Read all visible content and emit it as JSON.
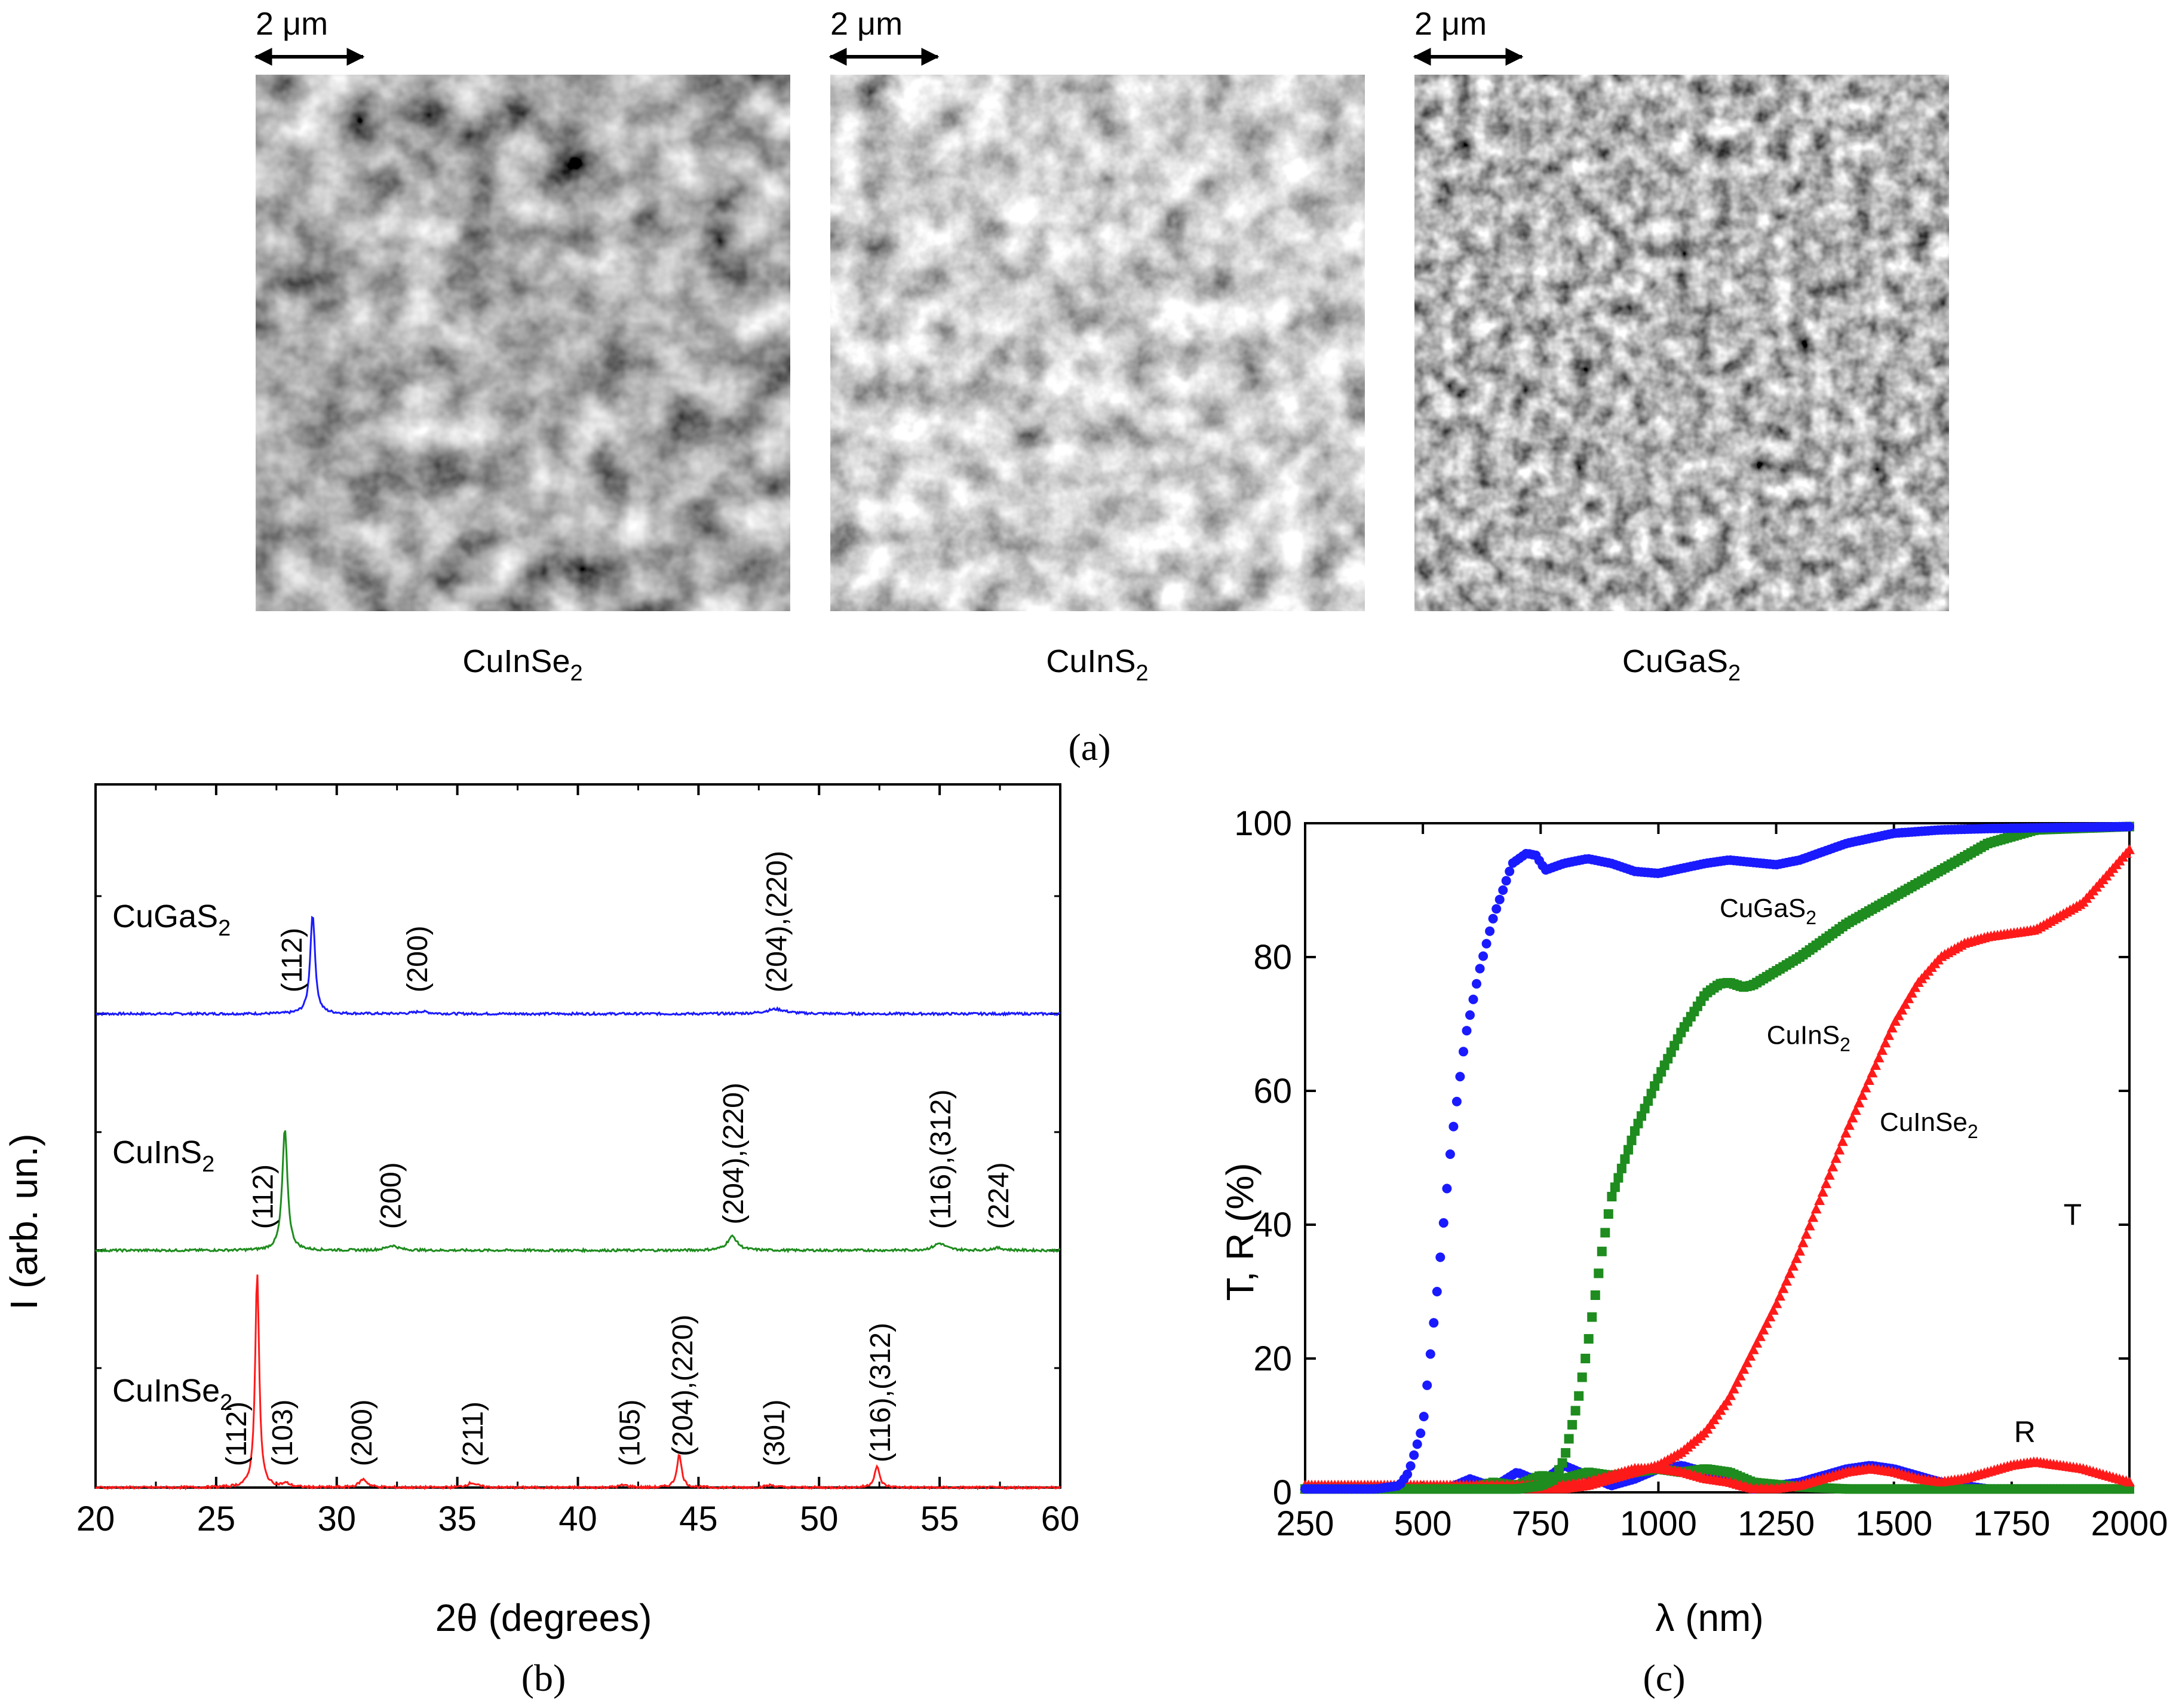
{
  "panel_a": {
    "panel_label": "(a)",
    "scale_bar_label": "2 μm",
    "images": [
      {
        "label": "CuInSe",
        "subscript": "2",
        "icon": "afm-image-grains-cuinse2"
      },
      {
        "label": "CuInS",
        "subscript": "2",
        "icon": "afm-image-grains-cuins2"
      },
      {
        "label": "CuGaS",
        "subscript": "2",
        "icon": "afm-image-grains-cugas2"
      }
    ]
  },
  "chart_data": [
    {
      "type": "line",
      "panel_label": "(b)",
      "xlabel": "2θ (degrees)",
      "ylabel": "I (arb. un.)",
      "xlim": [
        20,
        60
      ],
      "xticks": [
        20,
        25,
        30,
        35,
        40,
        45,
        50,
        55,
        60
      ],
      "y_ticks_shown": false,
      "series": [
        {
          "name": "CuGaS",
          "name_sub": "2",
          "color": "#1a1aff",
          "offset": 2,
          "baseline_noise": 0.005,
          "peaks": [
            {
              "x": 29.0,
              "height": 0.43,
              "width": 0.12
            },
            {
              "x": 33.5,
              "height": 0.01,
              "width": 0.35
            },
            {
              "x": 48.2,
              "height": 0.02,
              "width": 0.5
            }
          ],
          "annotations": [
            {
              "x": 28.1,
              "text": "(112)"
            },
            {
              "x": 33.3,
              "text": "(200)"
            },
            {
              "x": 48.2,
              "text": "(204),(220)"
            }
          ]
        },
        {
          "name": "CuInS",
          "name_sub": "2",
          "color": "#1e8c1e",
          "offset": 1,
          "baseline_noise": 0.005,
          "peaks": [
            {
              "x": 27.85,
              "height": 0.52,
              "width": 0.13
            },
            {
              "x": 32.3,
              "height": 0.02,
              "width": 0.3
            },
            {
              "x": 46.4,
              "height": 0.06,
              "width": 0.25
            },
            {
              "x": 55.0,
              "height": 0.03,
              "width": 0.3
            },
            {
              "x": 57.4,
              "height": 0.01,
              "width": 0.3
            }
          ],
          "annotations": [
            {
              "x": 26.9,
              "text": "(112)"
            },
            {
              "x": 32.2,
              "text": "(200)"
            },
            {
              "x": 46.4,
              "text": "(204),(220)"
            },
            {
              "x": 55.0,
              "text": "(116),(312)"
            },
            {
              "x": 57.4,
              "text": "(224)"
            }
          ]
        },
        {
          "name": "CuInSe",
          "name_sub": "2",
          "color": "#ff1a1a",
          "offset": 0,
          "baseline_noise": 0.005,
          "peaks": [
            {
              "x": 26.7,
              "height": 0.92,
              "width": 0.1
            },
            {
              "x": 27.9,
              "height": 0.015,
              "width": 0.2
            },
            {
              "x": 31.1,
              "height": 0.035,
              "width": 0.2
            },
            {
              "x": 35.6,
              "height": 0.02,
              "width": 0.25
            },
            {
              "x": 41.9,
              "height": 0.01,
              "width": 0.25
            },
            {
              "x": 44.2,
              "height": 0.14,
              "width": 0.12
            },
            {
              "x": 48.0,
              "height": 0.01,
              "width": 0.25
            },
            {
              "x": 52.4,
              "height": 0.09,
              "width": 0.13
            }
          ],
          "annotations": [
            {
              "x": 25.8,
              "text": "(112)"
            },
            {
              "x": 27.7,
              "text": "(103)"
            },
            {
              "x": 31.0,
              "text": "(200)"
            },
            {
              "x": 35.6,
              "text": "(211)"
            },
            {
              "x": 42.1,
              "text": "(105)"
            },
            {
              "x": 44.3,
              "text": "(204),(220)"
            },
            {
              "x": 48.1,
              "text": "(301)"
            },
            {
              "x": 52.5,
              "text": "(116),(312)"
            }
          ]
        }
      ]
    },
    {
      "type": "scatter",
      "panel_label": "(c)",
      "xlabel": "λ (nm)",
      "ylabel": "T, R (%)",
      "xlim": [
        250,
        2000
      ],
      "ylim": [
        0,
        100
      ],
      "xticks": [
        250,
        500,
        750,
        1000,
        1250,
        1500,
        1750,
        2000
      ],
      "yticks": [
        0,
        20,
        40,
        60,
        80,
        100
      ],
      "curve_labels": [
        {
          "text": "T",
          "x": 1860,
          "y": 40
        },
        {
          "text": "R",
          "x": 1755,
          "y": 7.5
        }
      ],
      "series": [
        {
          "name": "CuGaS",
          "name_sub": "2",
          "color": "#1a1aff",
          "marker": "circle",
          "label_at": [
            1130,
            86
          ],
          "T": {
            "x": [
              250,
              400,
              450,
              470,
              500,
              530,
              560,
              590,
              620,
              650,
              690,
              720,
              740,
              760,
              800,
              850,
              900,
              950,
              1000,
              1100,
              1150,
              1250,
              1300,
              1400,
              1500,
              1600,
              1700,
              2000
            ],
            "y": [
              0.5,
              0.5,
              1,
              3,
              10,
              30,
              52,
              68,
              78,
              86,
              94,
              95.5,
              95.2,
              93,
              94,
              94.7,
              94,
              92.8,
              92.5,
              94,
              94.5,
              93.8,
              94.5,
              97,
              98.5,
              99,
              99.2,
              99.5
            ]
          },
          "R": {
            "x": [
              250,
              550,
              600,
              650,
              700,
              750,
              800,
              850,
              900,
              950,
              1000,
              1050,
              1100,
              1150,
              1200,
              1300,
              1400,
              1450,
              1500,
              1600,
              1700,
              2000
            ],
            "y": [
              0.5,
              0.5,
              2,
              0.8,
              3,
              1.5,
              4,
              2.5,
              1,
              2,
              3.5,
              4,
              3,
              1.5,
              0.5,
              1.5,
              3.5,
              4,
              3.5,
              1.5,
              0.5,
              0.5
            ]
          }
        },
        {
          "name": "CuInS",
          "name_sub": "2",
          "color": "#1e8c1e",
          "marker": "square",
          "label_at": [
            1230,
            67
          ],
          "T": {
            "x": [
              250,
              700,
              750,
              780,
              800,
              830,
              850,
              880,
              900,
              950,
              1000,
              1050,
              1100,
              1130,
              1150,
              1180,
              1200,
              1300,
              1400,
              1500,
              1600,
              1700,
              1800,
              2000
            ],
            "y": [
              0.5,
              0.5,
              1,
              2,
              5,
              14,
              22,
              36,
              44,
              54,
              62,
              69,
              74.5,
              76,
              76.2,
              75.5,
              75.8,
              80,
              85,
              89,
              93,
              97,
              99,
              99.5
            ]
          },
          "R": {
            "x": [
              250,
              600,
              650,
              700,
              750,
              800,
              850,
              900,
              950,
              1000,
              1050,
              1100,
              1150,
              1200,
              1300,
              1400,
              1600,
              2000
            ],
            "y": [
              0.5,
              0.5,
              1.5,
              1,
              2.5,
              2,
              3,
              2.5,
              3,
              3.5,
              3,
              3.5,
              3,
              1.5,
              0.8,
              0.5,
              0.5,
              0.5
            ]
          }
        },
        {
          "name": "CuInSe",
          "name_sub": "2",
          "color": "#ff1a1a",
          "marker": "triangle",
          "label_at": [
            1470,
            54
          ],
          "T": {
            "x": [
              250,
              800,
              850,
              900,
              950,
              1000,
              1050,
              1100,
              1150,
              1200,
              1250,
              1300,
              1350,
              1400,
              1450,
              1500,
              1550,
              1600,
              1650,
              1700,
              1750,
              1800,
              1850,
              1900,
              1950,
              2000
            ],
            "y": [
              0.5,
              0.5,
              1,
              2,
              3,
              4,
              6,
              9,
              14,
              21,
              28,
              36,
              45,
              54,
              62,
              70,
              76,
              80,
              82,
              83,
              83.5,
              84,
              86,
              88,
              92,
              96
            ]
          },
          "R": {
            "x": [
              250,
              800,
              850,
              900,
              950,
              1000,
              1050,
              1100,
              1150,
              1200,
              1250,
              1300,
              1350,
              1400,
              1450,
              1500,
              1550,
              1600,
              1650,
              1700,
              1750,
              1800,
              1850,
              1900,
              1950,
              2000
            ],
            "y": [
              1,
              1,
              1.5,
              2.5,
              3.5,
              3.5,
              3,
              2,
              1.5,
              0.5,
              0.5,
              1,
              2,
              3,
              3.5,
              3,
              2,
              1.5,
              2,
              3,
              4,
              4.5,
              4,
              3.5,
              2.5,
              1.5
            ]
          }
        }
      ]
    }
  ]
}
